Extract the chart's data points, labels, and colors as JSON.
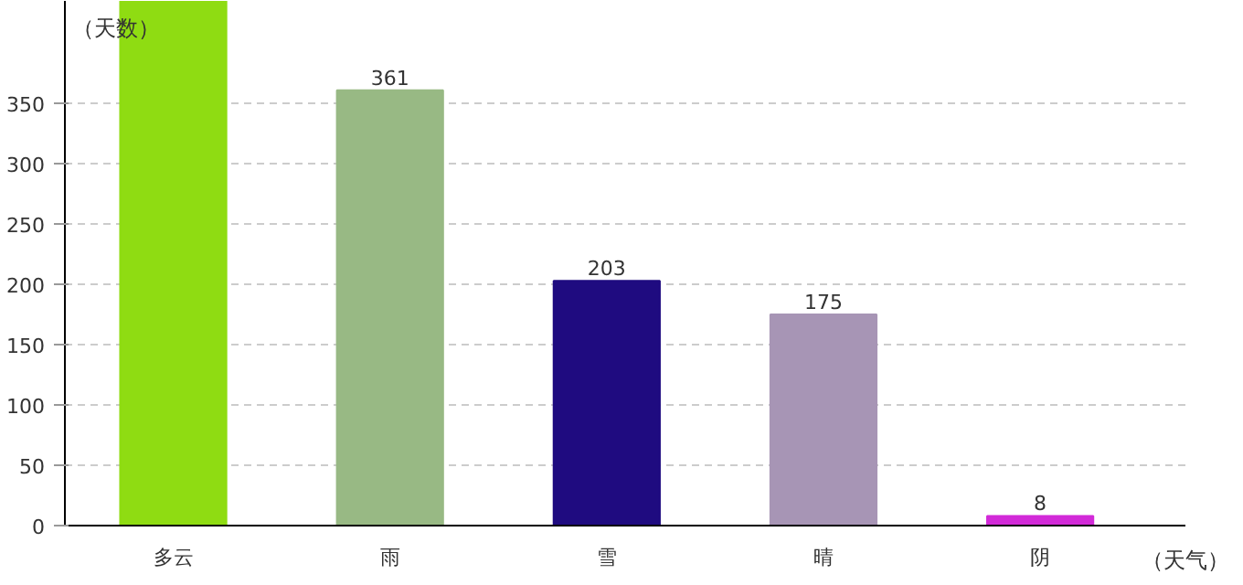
{
  "chart_data": {
    "type": "bar",
    "xlabel": "（天气）",
    "ylabel": "（天数）",
    "categories": [
      "多云",
      "雨",
      "雪",
      "晴",
      "阴"
    ],
    "values": [
      435,
      361,
      203,
      175,
      8
    ],
    "colors": [
      "#8fdc12",
      "#98b984",
      "#1f0b80",
      "#a795b5",
      "#d22ad8"
    ],
    "value_labels": [
      null,
      "361",
      "203",
      "175",
      "8"
    ],
    "ylim": [
      0,
      435
    ],
    "yticks": [
      0,
      50,
      100,
      150,
      200,
      250,
      300,
      350
    ],
    "grid": "y"
  }
}
